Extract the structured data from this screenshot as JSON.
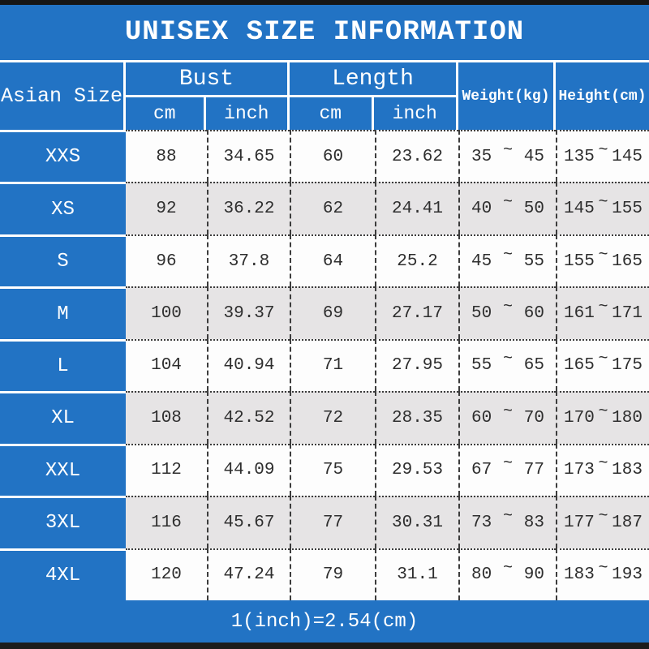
{
  "title": "UNISEX SIZE INFORMATION",
  "footer": {
    "note": "1(inch)=2.54(cm)"
  },
  "range_separator": "~",
  "header": {
    "size": "Asian Size",
    "bust": "Bust",
    "length": "Length",
    "weight": "Weight(kg)",
    "height": "Height(cm)",
    "bust_cm": "cm",
    "bust_inch": "inch",
    "length_cm": "cm",
    "length_inch": "inch"
  },
  "colors": {
    "accent_blue": "#2273c4",
    "alt_row_gray": "#e6e4e5",
    "border_black": "#161616",
    "text_dark": "#2e2e2e",
    "text_white": "#ffffff"
  },
  "chart_data": {
    "type": "table",
    "title": "UNISEX SIZE INFORMATION",
    "columns": [
      "Asian Size",
      "Bust cm",
      "Bust inch",
      "Length cm",
      "Length inch",
      "Weight(kg)",
      "Height(cm)"
    ],
    "column_groups": [
      {
        "label": "Bust",
        "children": [
          "cm",
          "inch"
        ]
      },
      {
        "label": "Length",
        "children": [
          "cm",
          "inch"
        ]
      }
    ],
    "note": "1(inch)=2.54(cm)",
    "rows": [
      {
        "size": "XXS",
        "bust_cm": "88",
        "bust_inch": "34.65",
        "length_cm": "60",
        "length_inch": "23.62",
        "weight_min": "35",
        "weight_max": "45",
        "height_min": "135",
        "height_max": "145"
      },
      {
        "size": "XS",
        "bust_cm": "92",
        "bust_inch": "36.22",
        "length_cm": "62",
        "length_inch": "24.41",
        "weight_min": "40",
        "weight_max": "50",
        "height_min": "145",
        "height_max": "155"
      },
      {
        "size": "S",
        "bust_cm": "96",
        "bust_inch": "37.8",
        "length_cm": "64",
        "length_inch": "25.2",
        "weight_min": "45",
        "weight_max": "55",
        "height_min": "155",
        "height_max": "165"
      },
      {
        "size": "M",
        "bust_cm": "100",
        "bust_inch": "39.37",
        "length_cm": "69",
        "length_inch": "27.17",
        "weight_min": "50",
        "weight_max": "60",
        "height_min": "161",
        "height_max": "171"
      },
      {
        "size": "L",
        "bust_cm": "104",
        "bust_inch": "40.94",
        "length_cm": "71",
        "length_inch": "27.95",
        "weight_min": "55",
        "weight_max": "65",
        "height_min": "165",
        "height_max": "175"
      },
      {
        "size": "XL",
        "bust_cm": "108",
        "bust_inch": "42.52",
        "length_cm": "72",
        "length_inch": "28.35",
        "weight_min": "60",
        "weight_max": "70",
        "height_min": "170",
        "height_max": "180"
      },
      {
        "size": "XXL",
        "bust_cm": "112",
        "bust_inch": "44.09",
        "length_cm": "75",
        "length_inch": "29.53",
        "weight_min": "67",
        "weight_max": "77",
        "height_min": "173",
        "height_max": "183"
      },
      {
        "size": "3XL",
        "bust_cm": "116",
        "bust_inch": "45.67",
        "length_cm": "77",
        "length_inch": "30.31",
        "weight_min": "73",
        "weight_max": "83",
        "height_min": "177",
        "height_max": "187"
      },
      {
        "size": "4XL",
        "bust_cm": "120",
        "bust_inch": "47.24",
        "length_cm": "79",
        "length_inch": "31.1",
        "weight_min": "80",
        "weight_max": "90",
        "height_min": "183",
        "height_max": "193"
      }
    ]
  }
}
